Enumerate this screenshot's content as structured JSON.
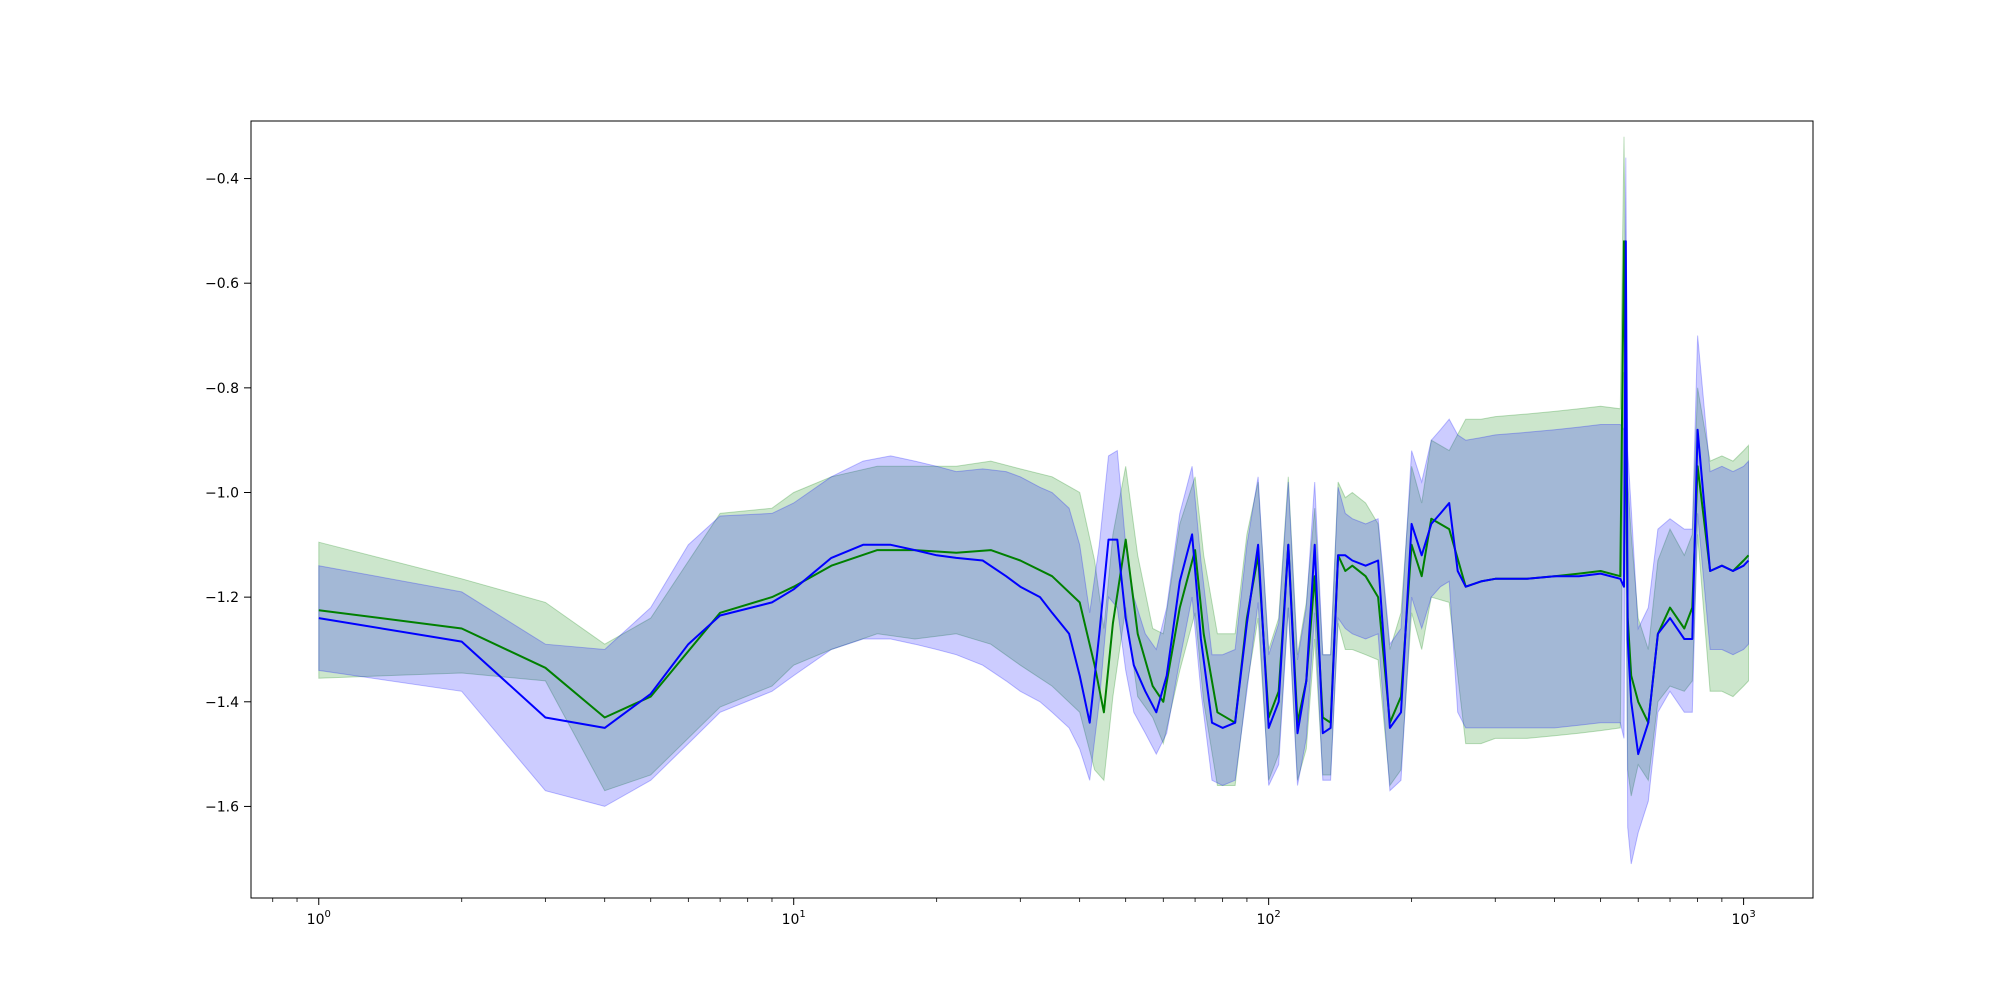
{
  "chart_data": {
    "type": "line",
    "title": "",
    "xlabel": "",
    "ylabel": "",
    "xscale": "log",
    "xlim": [
      0.72,
      1400
    ],
    "ylim": [
      -1.775,
      -0.29
    ],
    "grid": false,
    "legend": "none",
    "x_ticks": [
      {
        "value": 1,
        "base": "10",
        "exp": "0"
      },
      {
        "value": 10,
        "base": "10",
        "exp": "1"
      },
      {
        "value": 100,
        "base": "10",
        "exp": "2"
      },
      {
        "value": 1000,
        "base": "10",
        "exp": "3"
      }
    ],
    "y_ticks": [
      {
        "value": -1.6,
        "label": "−1.6"
      },
      {
        "value": -1.4,
        "label": "−1.4"
      },
      {
        "value": -1.2,
        "label": "−1.2"
      },
      {
        "value": -1.0,
        "label": "−1.0"
      },
      {
        "value": -0.8,
        "label": "−0.8"
      },
      {
        "value": -0.6,
        "label": "−0.6"
      },
      {
        "value": -0.4,
        "label": "−0.4"
      }
    ],
    "series": [
      {
        "color": "#008000",
        "band_color": "#008000",
        "band_opacity": 0.2,
        "x": [
          1,
          2,
          3,
          4,
          5,
          7,
          9,
          10,
          12,
          15,
          18,
          22,
          26,
          30,
          35,
          40,
          43,
          45,
          47,
          50,
          53,
          57,
          60,
          65,
          70,
          73,
          78,
          85,
          90,
          95,
          100,
          105,
          110,
          115,
          120,
          125,
          130,
          135,
          140,
          145,
          150,
          160,
          170,
          180,
          190,
          200,
          210,
          220,
          240,
          260,
          280,
          300,
          350,
          400,
          450,
          500,
          550,
          560,
          570,
          580,
          600,
          630,
          660,
          700,
          750,
          780,
          800,
          850,
          900,
          950,
          1000,
          1024
        ],
        "mean": [
          -1.225,
          -1.26,
          -1.335,
          -1.43,
          -1.39,
          -1.23,
          -1.2,
          -1.18,
          -1.14,
          -1.11,
          -1.11,
          -1.115,
          -1.11,
          -1.13,
          -1.16,
          -1.21,
          -1.33,
          -1.42,
          -1.25,
          -1.09,
          -1.27,
          -1.37,
          -1.4,
          -1.22,
          -1.11,
          -1.27,
          -1.42,
          -1.44,
          -1.24,
          -1.12,
          -1.43,
          -1.38,
          -1.1,
          -1.44,
          -1.36,
          -1.16,
          -1.43,
          -1.44,
          -1.12,
          -1.15,
          -1.14,
          -1.16,
          -1.2,
          -1.44,
          -1.39,
          -1.1,
          -1.16,
          -1.05,
          -1.07,
          -1.18,
          -1.17,
          -1.165,
          -1.165,
          -1.16,
          -1.155,
          -1.15,
          -1.16,
          -0.52,
          -1.24,
          -1.35,
          -1.4,
          -1.44,
          -1.27,
          -1.22,
          -1.26,
          -1.22,
          -0.95,
          -1.15,
          -1.14,
          -1.15,
          -1.13,
          -1.12
        ],
        "lower": [
          -1.355,
          -1.345,
          -1.36,
          -1.57,
          -1.54,
          -1.41,
          -1.37,
          -1.33,
          -1.3,
          -1.27,
          -1.28,
          -1.27,
          -1.29,
          -1.33,
          -1.37,
          -1.42,
          -1.53,
          -1.55,
          -1.39,
          -1.22,
          -1.39,
          -1.43,
          -1.48,
          -1.34,
          -1.23,
          -1.4,
          -1.56,
          -1.56,
          -1.37,
          -1.24,
          -1.55,
          -1.5,
          -1.22,
          -1.55,
          -1.49,
          -1.28,
          -1.54,
          -1.54,
          -1.25,
          -1.3,
          -1.3,
          -1.31,
          -1.32,
          -1.56,
          -1.53,
          -1.23,
          -1.3,
          -1.2,
          -1.21,
          -1.48,
          -1.48,
          -1.47,
          -1.47,
          -1.465,
          -1.46,
          -1.455,
          -1.45,
          -0.77,
          -1.53,
          -1.58,
          -1.52,
          -1.55,
          -1.4,
          -1.37,
          -1.38,
          -1.36,
          -1.08,
          -1.38,
          -1.38,
          -1.39,
          -1.37,
          -1.36
        ],
        "upper": [
          -1.095,
          -1.165,
          -1.21,
          -1.29,
          -1.24,
          -1.04,
          -1.03,
          -1.0,
          -0.97,
          -0.95,
          -0.95,
          -0.95,
          -0.94,
          -0.955,
          -0.97,
          -1.0,
          -1.13,
          -1.26,
          -1.08,
          -0.95,
          -1.12,
          -1.26,
          -1.27,
          -1.06,
          -0.97,
          -1.12,
          -1.27,
          -1.27,
          -1.08,
          -0.98,
          -1.3,
          -1.24,
          -0.97,
          -1.31,
          -1.21,
          -1.03,
          -1.31,
          -1.31,
          -0.98,
          -1.01,
          -1.0,
          -1.02,
          -1.06,
          -1.3,
          -1.23,
          -0.95,
          -1.02,
          -0.9,
          -0.92,
          -0.86,
          -0.86,
          -0.855,
          -0.85,
          -0.845,
          -0.84,
          -0.835,
          -0.84,
          -0.32,
          -0.98,
          -1.08,
          -1.24,
          -1.3,
          -1.13,
          -1.07,
          -1.12,
          -1.08,
          -0.8,
          -0.94,
          -0.93,
          -0.94,
          -0.92,
          -0.91
        ]
      },
      {
        "color": "#0000ff",
        "band_color": "#0000ff",
        "band_opacity": 0.2,
        "x": [
          1,
          2,
          3,
          4,
          5,
          6,
          7,
          9,
          10,
          12,
          14,
          16,
          18,
          20,
          22,
          25,
          28,
          30,
          33,
          35,
          38,
          40,
          42,
          44,
          46,
          48,
          50,
          52,
          55,
          58,
          61,
          65,
          69,
          72,
          76,
          80,
          85,
          90,
          95,
          100,
          105,
          110,
          115,
          120,
          125,
          130,
          135,
          140,
          145,
          150,
          160,
          170,
          180,
          190,
          200,
          210,
          220,
          230,
          240,
          250,
          260,
          280,
          300,
          350,
          400,
          450,
          500,
          550,
          560,
          565,
          570,
          580,
          600,
          630,
          660,
          700,
          750,
          780,
          800,
          850,
          900,
          950,
          1000,
          1024
        ],
        "mean": [
          -1.24,
          -1.285,
          -1.43,
          -1.45,
          -1.385,
          -1.29,
          -1.235,
          -1.21,
          -1.185,
          -1.125,
          -1.1,
          -1.1,
          -1.11,
          -1.12,
          -1.125,
          -1.13,
          -1.16,
          -1.18,
          -1.2,
          -1.23,
          -1.27,
          -1.35,
          -1.44,
          -1.27,
          -1.09,
          -1.09,
          -1.24,
          -1.33,
          -1.38,
          -1.42,
          -1.35,
          -1.17,
          -1.08,
          -1.28,
          -1.44,
          -1.45,
          -1.44,
          -1.25,
          -1.1,
          -1.45,
          -1.4,
          -1.1,
          -1.46,
          -1.36,
          -1.1,
          -1.46,
          -1.45,
          -1.12,
          -1.12,
          -1.13,
          -1.14,
          -1.13,
          -1.45,
          -1.42,
          -1.06,
          -1.12,
          -1.06,
          -1.04,
          -1.02,
          -1.15,
          -1.18,
          -1.17,
          -1.165,
          -1.165,
          -1.16,
          -1.16,
          -1.155,
          -1.165,
          -1.18,
          -0.52,
          -1.28,
          -1.4,
          -1.5,
          -1.44,
          -1.27,
          -1.24,
          -1.28,
          -1.28,
          -0.88,
          -1.15,
          -1.14,
          -1.15,
          -1.14,
          -1.13
        ],
        "lower": [
          -1.34,
          -1.38,
          -1.57,
          -1.6,
          -1.55,
          -1.48,
          -1.42,
          -1.38,
          -1.35,
          -1.3,
          -1.28,
          -1.28,
          -1.29,
          -1.3,
          -1.31,
          -1.33,
          -1.36,
          -1.38,
          -1.4,
          -1.42,
          -1.45,
          -1.49,
          -1.55,
          -1.4,
          -1.2,
          -1.22,
          -1.34,
          -1.42,
          -1.46,
          -1.5,
          -1.46,
          -1.32,
          -1.2,
          -1.38,
          -1.55,
          -1.56,
          -1.55,
          -1.38,
          -1.21,
          -1.56,
          -1.52,
          -1.22,
          -1.56,
          -1.47,
          -1.23,
          -1.55,
          -1.55,
          -1.24,
          -1.26,
          -1.27,
          -1.28,
          -1.27,
          -1.57,
          -1.55,
          -1.2,
          -1.26,
          -1.2,
          -1.18,
          -1.17,
          -1.42,
          -1.45,
          -1.45,
          -1.45,
          -1.45,
          -1.45,
          -1.445,
          -1.44,
          -1.44,
          -1.47,
          -0.79,
          -1.64,
          -1.71,
          -1.65,
          -1.59,
          -1.42,
          -1.38,
          -1.42,
          -1.42,
          -1.04,
          -1.3,
          -1.3,
          -1.31,
          -1.3,
          -1.29
        ],
        "upper": [
          -1.14,
          -1.19,
          -1.29,
          -1.3,
          -1.22,
          -1.1,
          -1.045,
          -1.04,
          -1.02,
          -0.97,
          -0.94,
          -0.93,
          -0.94,
          -0.95,
          -0.96,
          -0.955,
          -0.96,
          -0.97,
          -0.99,
          -1.0,
          -1.03,
          -1.1,
          -1.23,
          -1.1,
          -0.93,
          -0.92,
          -1.1,
          -1.2,
          -1.27,
          -1.3,
          -1.22,
          -1.04,
          -0.95,
          -1.13,
          -1.31,
          -1.31,
          -1.3,
          -1.1,
          -0.97,
          -1.31,
          -1.25,
          -0.98,
          -1.32,
          -1.22,
          -0.98,
          -1.31,
          -1.31,
          -0.99,
          -1.04,
          -1.05,
          -1.06,
          -1.05,
          -1.29,
          -1.26,
          -0.92,
          -0.98,
          -0.9,
          -0.88,
          -0.86,
          -0.89,
          -0.9,
          -0.895,
          -0.89,
          -0.885,
          -0.88,
          -0.875,
          -0.87,
          -0.87,
          -0.88,
          -0.36,
          -0.92,
          -1.03,
          -1.26,
          -1.22,
          -1.07,
          -1.05,
          -1.07,
          -1.07,
          -0.7,
          -0.96,
          -0.95,
          -0.96,
          -0.95,
          -0.94
        ]
      }
    ]
  }
}
